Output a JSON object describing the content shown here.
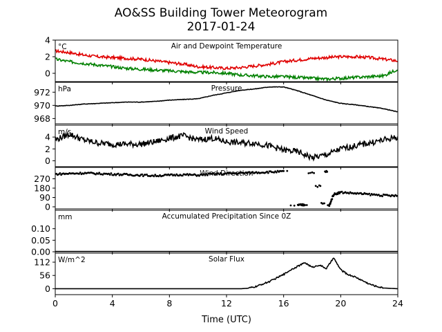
{
  "figure": {
    "title": "AO&SS Building Tower Meteorogram",
    "subtitle": "2017-01-24",
    "xlabel": "Time (UTC)",
    "x_range": [
      0,
      24
    ],
    "x_ticks": [
      0,
      4,
      8,
      12,
      16,
      20,
      24
    ]
  },
  "chart_data": [
    {
      "type": "line",
      "title": "Air and Dewpoint Temperature",
      "unit": "°C",
      "ylim": [
        -1.0,
        4.0
      ],
      "yticks": [
        0,
        2,
        4
      ],
      "series": [
        {
          "color": "#e00000",
          "x": [
            0,
            1,
            2,
            3,
            4,
            5,
            6,
            7,
            8,
            9,
            10,
            11,
            12,
            13,
            14,
            15,
            16,
            17,
            18,
            19,
            20,
            21,
            22,
            23,
            24
          ],
          "y": [
            2.7,
            2.5,
            2.2,
            2.0,
            1.9,
            1.8,
            1.7,
            1.5,
            1.3,
            1.1,
            0.8,
            0.7,
            0.6,
            0.7,
            0.9,
            1.1,
            1.4,
            1.6,
            1.8,
            1.9,
            2.0,
            2.0,
            1.9,
            1.7,
            1.5
          ]
        },
        {
          "color": "#008000",
          "x": [
            0,
            1,
            2,
            3,
            4,
            5,
            6,
            7,
            8,
            9,
            10,
            11,
            12,
            13,
            14,
            15,
            16,
            17,
            18,
            19,
            20,
            21,
            22,
            23,
            24
          ],
          "y": [
            1.7,
            1.4,
            1.2,
            1.0,
            0.8,
            0.6,
            0.5,
            0.4,
            0.3,
            0.2,
            0.1,
            0.1,
            0.0,
            -0.2,
            -0.3,
            -0.4,
            -0.4,
            -0.5,
            -0.6,
            -0.7,
            -0.6,
            -0.5,
            -0.4,
            -0.3,
            0.5
          ]
        }
      ]
    },
    {
      "type": "line",
      "title": "Pressure",
      "unit": "hPa",
      "ylim": [
        967.2,
        973.5
      ],
      "yticks": [
        968,
        970,
        972
      ],
      "series": [
        {
          "color": "#000000",
          "x": [
            0,
            1,
            2,
            3,
            4,
            5,
            6,
            7,
            8,
            9,
            10,
            11,
            12,
            13,
            14,
            15,
            16,
            17,
            18,
            19,
            20,
            21,
            22,
            23,
            24
          ],
          "y": [
            969.9,
            970.0,
            970.2,
            970.3,
            970.4,
            970.5,
            970.5,
            970.6,
            970.8,
            970.9,
            971.0,
            971.5,
            971.9,
            972.3,
            972.5,
            972.8,
            972.8,
            972.2,
            971.5,
            970.8,
            970.3,
            970.1,
            969.8,
            969.5,
            969.0
          ]
        }
      ]
    },
    {
      "type": "line",
      "title": "Wind Speed",
      "unit": "m/s",
      "ylim": [
        -1.0,
        6.0
      ],
      "yticks": [
        0,
        2,
        4
      ],
      "series": [
        {
          "color": "#000000",
          "x": [
            0,
            1,
            2,
            3,
            4,
            5,
            6,
            7,
            8,
            9,
            10,
            11,
            12,
            13,
            14,
            15,
            16,
            17,
            18,
            19,
            20,
            21,
            22,
            23,
            24
          ],
          "y": [
            3.5,
            4.5,
            3.5,
            3.0,
            2.8,
            2.8,
            2.8,
            3.2,
            3.8,
            4.2,
            3.5,
            3.8,
            3.2,
            3.0,
            3.0,
            2.5,
            1.8,
            1.5,
            0.5,
            1.0,
            2.0,
            2.5,
            3.0,
            3.5,
            4.0
          ]
        }
      ]
    },
    {
      "type": "scatter",
      "title": "Wind Direction",
      "unit": "",
      "ylim": [
        -20,
        380
      ],
      "yticks": [
        0,
        90,
        180,
        270
      ],
      "series": [
        {
          "color": "#000000",
          "x": [
            0,
            1,
            2,
            3,
            4,
            5,
            6,
            7,
            8,
            9,
            10,
            11,
            12,
            13,
            14,
            15,
            16,
            17,
            17.5,
            18,
            18.5,
            18.8,
            19,
            19.2,
            19.5,
            20,
            21,
            22,
            23,
            24
          ],
          "y": [
            315,
            320,
            325,
            320,
            315,
            310,
            305,
            300,
            305,
            310,
            305,
            315,
            320,
            325,
            330,
            335,
            340,
            15,
            20,
            330,
            200,
            30,
            340,
            10,
            120,
            140,
            130,
            120,
            110,
            105
          ]
        }
      ]
    },
    {
      "type": "line",
      "title": "Accumulated Precipitation Since 0Z",
      "unit": "mm",
      "ylim": [
        0.0,
        0.18
      ],
      "yticks": [
        0.0,
        0.05,
        0.1
      ],
      "series": [
        {
          "color": "#000000",
          "x": [
            0,
            24
          ],
          "y": [
            0.0,
            0.0
          ]
        }
      ]
    },
    {
      "type": "line",
      "title": "Solar Flux",
      "unit": "W/m^2",
      "ylim": [
        -25,
        150
      ],
      "yticks": [
        0,
        56,
        112
      ],
      "series": [
        {
          "color": "#000000",
          "x": [
            0,
            12,
            13,
            13.5,
            14,
            15,
            16,
            16.5,
            17,
            17.5,
            18,
            18.5,
            19,
            19.5,
            20,
            20.5,
            21,
            21.5,
            22,
            22.5,
            23,
            24
          ],
          "y": [
            0,
            0,
            0,
            2,
            8,
            30,
            60,
            80,
            95,
            110,
            90,
            100,
            85,
            130,
            80,
            60,
            50,
            35,
            20,
            10,
            3,
            0
          ]
        }
      ]
    }
  ]
}
